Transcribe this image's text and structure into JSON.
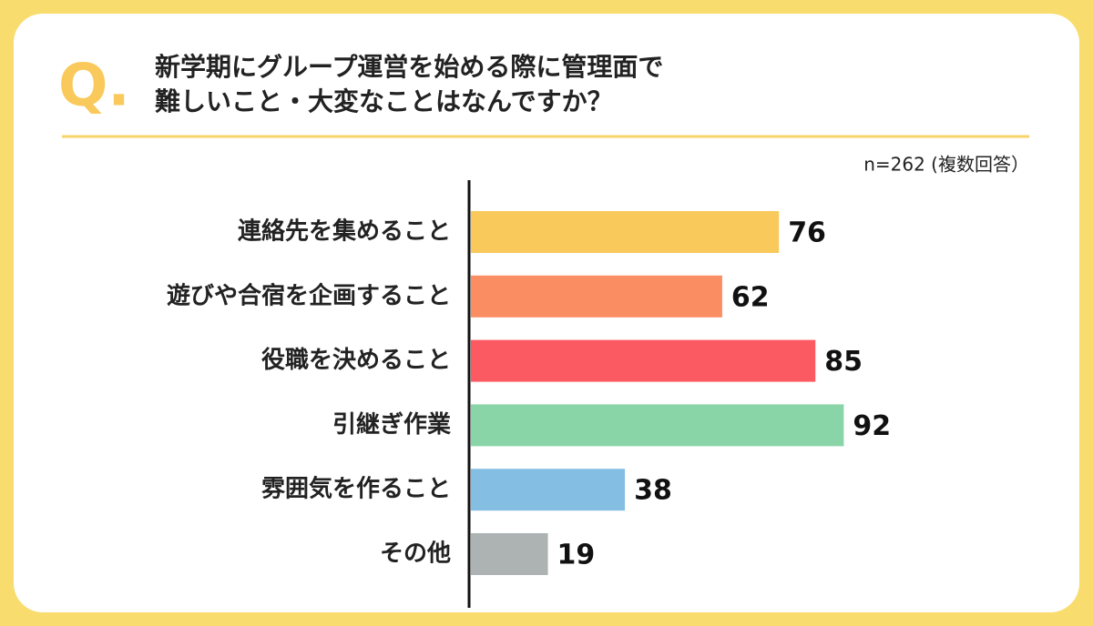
{
  "q_mark": "Q.",
  "chart_data": {
    "type": "bar",
    "orientation": "horizontal",
    "title": [
      "新学期にグループ運営を始める際に管理面で",
      "難しいこと・大変なことはなんですか？"
    ],
    "note": "n=262 (複数回答）",
    "categories": [
      "連絡先を集めること",
      "遊びや合宿を企画すること",
      "役職を決めること",
      "引継ぎ作業",
      "雰囲気を作ること",
      "その他"
    ],
    "values": [
      76,
      62,
      85,
      92,
      38,
      19
    ],
    "colors": [
      "#f9c95c",
      "#fb8d62",
      "#fb5a63",
      "#8ad5a8",
      "#84bfe3",
      "#acb3b2"
    ]
  }
}
